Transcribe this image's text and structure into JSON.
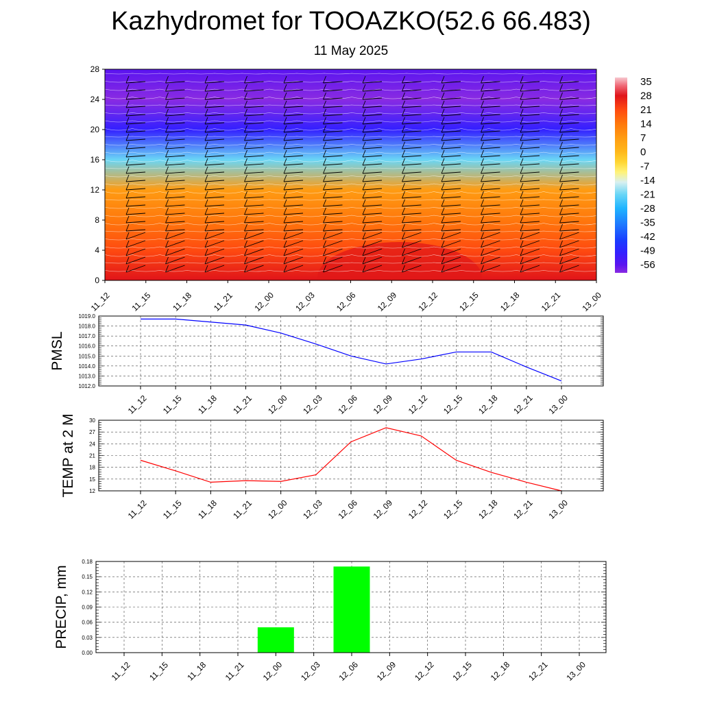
{
  "title": "Kazhydromet for TOOAZKO(52.6 66.483)",
  "subtitle": "11 May 2025",
  "chart_data": [
    {
      "type": "heatmap",
      "x_ticks": [
        "11_12",
        "11_15",
        "11_18",
        "11_21",
        "12_00",
        "12_03",
        "12_06",
        "12_09",
        "12_12",
        "12_15",
        "12_18",
        "12_21",
        "13_00"
      ],
      "y_ticks": [
        "0",
        "4",
        "8",
        "12",
        "16",
        "20",
        "24",
        "28"
      ],
      "ylim": [
        0,
        28
      ],
      "colorbar_labels": [
        "35",
        "28",
        "21",
        "14",
        "7",
        "0",
        "-7",
        "-14",
        "-21",
        "-28",
        "-35",
        "-42",
        "-49",
        "-56"
      ],
      "colorbar_range": [
        -60,
        37
      ],
      "profile_levels": [
        0,
        4,
        8,
        12,
        16,
        20,
        24,
        28
      ],
      "profile_values": [
        24,
        18,
        10,
        3,
        -25,
        -55,
        -60,
        -57
      ],
      "contour_lines": "white",
      "wind_barbs": true
    },
    {
      "type": "line",
      "ylabel": "PMSL",
      "x": [
        "11_12",
        "11_15",
        "11_18",
        "11_21",
        "12_00",
        "12_03",
        "12_06",
        "12_09",
        "12_12",
        "12_15",
        "12_18",
        "12_21",
        "13_00"
      ],
      "values": [
        1018.7,
        1018.7,
        1018.4,
        1018.1,
        1017.3,
        1016.2,
        1015.0,
        1014.2,
        1014.7,
        1015.4,
        1015.4,
        1013.9,
        1012.5
      ],
      "ylim": [
        1012,
        1019
      ],
      "y_ticks": [
        "1012.0",
        "1013.0",
        "1014.0",
        "1015.0",
        "1016.0",
        "1017.0",
        "1018.0",
        "1019.0"
      ],
      "color": "#0000ff",
      "grid": true
    },
    {
      "type": "line",
      "ylabel": "TEMP at 2 M",
      "x": [
        "11_12",
        "11_15",
        "11_18",
        "11_21",
        "12_00",
        "12_03",
        "12_06",
        "12_09",
        "12_12",
        "12_15",
        "12_18",
        "12_21",
        "13_00"
      ],
      "values": [
        19.8,
        17.1,
        14.2,
        14.6,
        14.4,
        16.1,
        24.5,
        28.1,
        26.0,
        19.8,
        16.7,
        14.2,
        12.0
      ],
      "ylim": [
        12,
        30
      ],
      "y_ticks": [
        "12",
        "15",
        "18",
        "21",
        "24",
        "27",
        "30"
      ],
      "color": "#ff0000",
      "grid": true
    },
    {
      "type": "bar",
      "ylabel": "PRECIP, mm",
      "categories": [
        "11_12",
        "11_15",
        "11_18",
        "11_21",
        "12_00",
        "12_03",
        "12_06",
        "12_09",
        "12_12",
        "12_15",
        "12_18",
        "12_21",
        "13_00"
      ],
      "values": [
        0,
        0,
        0,
        0,
        0.05,
        0,
        0.17,
        0,
        0,
        0,
        0,
        0,
        0
      ],
      "ylim": [
        0,
        0.18
      ],
      "y_ticks": [
        "0.00",
        "0.03",
        "0.06",
        "0.09",
        "0.12",
        "0.15",
        "0.18"
      ],
      "color": "#00ff00",
      "grid": true
    }
  ]
}
